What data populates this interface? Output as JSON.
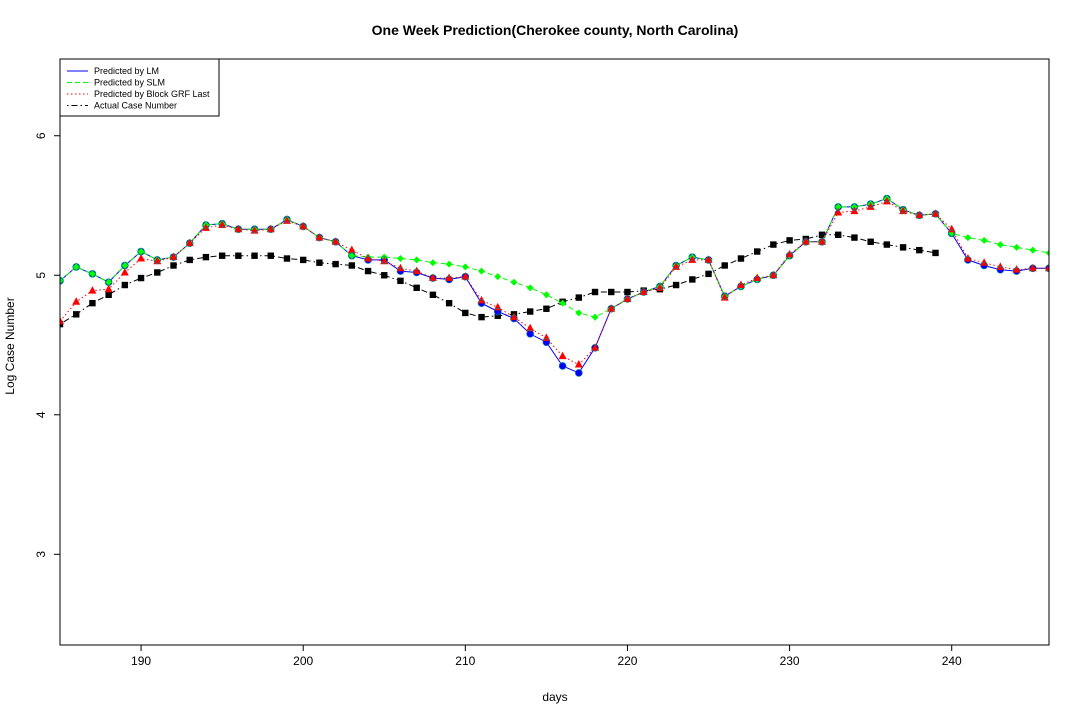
{
  "chart_data": {
    "type": "line",
    "title": "One Week Prediction(Cherokee county, North Carolina)",
    "xlabel": "days",
    "ylabel": "Log Case Number",
    "xlim": [
      185,
      246
    ],
    "ylim": [
      2.35,
      6.55
    ],
    "xticks": [
      190,
      200,
      210,
      220,
      230,
      240
    ],
    "yticks": [
      3,
      4,
      5,
      6
    ],
    "legend_position": "top-left",
    "x": [
      185,
      186,
      187,
      188,
      189,
      190,
      191,
      192,
      193,
      194,
      195,
      196,
      197,
      198,
      199,
      200,
      201,
      202,
      203,
      204,
      205,
      206,
      207,
      208,
      209,
      210,
      211,
      212,
      213,
      214,
      215,
      216,
      217,
      218,
      219,
      220,
      221,
      222,
      223,
      224,
      225,
      226,
      227,
      228,
      229,
      230,
      231,
      232,
      233,
      234,
      235,
      236,
      237,
      238,
      239,
      240,
      241,
      242,
      243,
      244,
      245,
      246
    ],
    "series": [
      {
        "name": "Predicted by LM",
        "color": "#0000ff",
        "line_style": "solid",
        "marker": "circle",
        "marker_color": "#0000ff",
        "values": [
          4.96,
          5.06,
          5.01,
          4.95,
          5.07,
          5.17,
          5.11,
          5.13,
          5.23,
          5.36,
          5.37,
          5.33,
          5.33,
          5.33,
          5.4,
          5.35,
          5.27,
          5.24,
          5.14,
          5.11,
          5.11,
          5.03,
          5.02,
          4.98,
          4.97,
          4.99,
          4.8,
          4.74,
          4.69,
          4.58,
          4.52,
          4.35,
          4.3,
          4.48,
          4.76,
          4.83,
          4.88,
          4.92,
          5.07,
          5.13,
          5.11,
          4.85,
          4.92,
          4.97,
          5.0,
          5.14,
          5.24,
          5.24,
          5.49,
          5.49,
          5.51,
          5.55,
          5.47,
          5.43,
          5.44,
          5.3,
          5.11,
          5.07,
          5.04,
          5.03,
          5.05,
          5.05
        ]
      },
      {
        "name": "Predicted by SLM",
        "color": "#00ff00",
        "line_style": "dashed",
        "marker": "diamond",
        "marker_color": "#00ff00",
        "values": [
          4.96,
          5.06,
          5.01,
          4.95,
          5.07,
          5.17,
          5.11,
          5.13,
          5.23,
          5.36,
          5.37,
          5.33,
          5.33,
          5.33,
          5.4,
          5.35,
          5.27,
          5.24,
          5.14,
          5.13,
          5.13,
          5.12,
          5.11,
          5.09,
          5.08,
          5.06,
          5.03,
          4.99,
          4.95,
          4.91,
          4.86,
          4.8,
          4.73,
          4.7,
          4.76,
          4.83,
          4.88,
          4.92,
          5.07,
          5.13,
          5.11,
          4.85,
          4.92,
          4.97,
          5.0,
          5.14,
          5.24,
          5.24,
          5.49,
          5.49,
          5.51,
          5.55,
          5.47,
          5.43,
          5.44,
          5.3,
          5.27,
          5.25,
          5.22,
          5.2,
          5.18,
          5.16
        ]
      },
      {
        "name": "Predicted by Block GRF Last",
        "color": "#ff0000",
        "line_style": "dotted",
        "marker": "triangle",
        "marker_color": "#ff0000",
        "values": [
          4.67,
          4.81,
          4.89,
          4.9,
          5.02,
          5.12,
          5.1,
          5.13,
          5.23,
          5.34,
          5.36,
          5.33,
          5.32,
          5.33,
          5.39,
          5.35,
          5.27,
          5.24,
          5.18,
          5.12,
          5.1,
          5.05,
          5.03,
          4.98,
          4.98,
          4.99,
          4.82,
          4.77,
          4.7,
          4.62,
          4.55,
          4.42,
          4.36,
          4.48,
          4.76,
          4.83,
          4.88,
          4.91,
          5.06,
          5.11,
          5.11,
          4.84,
          4.93,
          4.98,
          5.0,
          5.15,
          5.24,
          5.24,
          5.45,
          5.46,
          5.49,
          5.53,
          5.46,
          5.43,
          5.44,
          5.33,
          5.12,
          5.09,
          5.06,
          5.04,
          5.05,
          5.05
        ]
      },
      {
        "name": "Actual Case Number",
        "color": "#000000",
        "line_style": "dotdash",
        "marker": "square",
        "marker_color": "#000000",
        "values": [
          4.65,
          4.72,
          4.8,
          4.86,
          4.93,
          4.98,
          5.02,
          5.07,
          5.11,
          5.13,
          5.14,
          5.14,
          5.14,
          5.14,
          5.12,
          5.11,
          5.09,
          5.08,
          5.07,
          5.03,
          5.0,
          4.96,
          4.91,
          4.86,
          4.8,
          4.73,
          4.7,
          4.71,
          4.72,
          4.74,
          4.76,
          4.81,
          4.84,
          4.88,
          4.88,
          4.88,
          4.89,
          4.9,
          4.93,
          4.97,
          5.01,
          5.07,
          5.12,
          5.17,
          5.22,
          5.25,
          5.26,
          5.29,
          5.29,
          5.27,
          5.24,
          5.22,
          5.2,
          5.18,
          5.16,
          null,
          null,
          null,
          null,
          null,
          null,
          null
        ]
      }
    ]
  }
}
